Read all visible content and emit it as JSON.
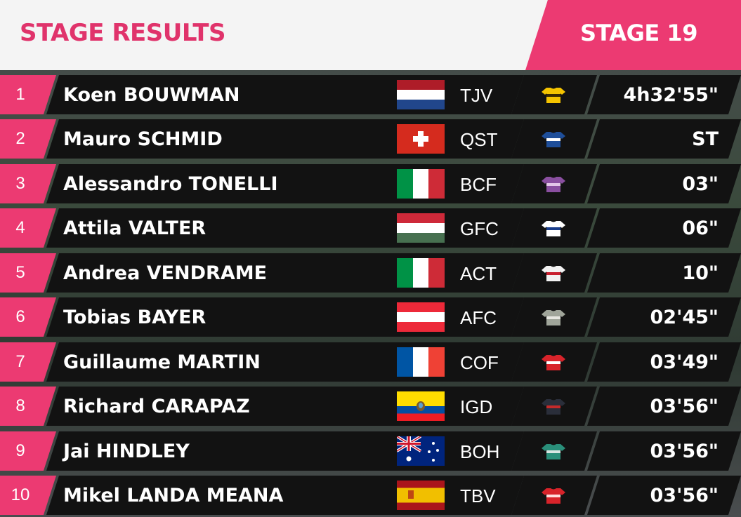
{
  "header": {
    "title": "STAGE RESULTS",
    "stage": "STAGE 19"
  },
  "results": [
    {
      "rank": "1",
      "name": "Koen BOUWMAN",
      "flag": "netherlands",
      "team": "TJV",
      "jersey": "yellow-black-jersey",
      "time": "4h32'55\""
    },
    {
      "rank": "2",
      "name": "Mauro SCHMID",
      "flag": "switzerland",
      "team": "QST",
      "jersey": "blue-jersey",
      "time": "ST"
    },
    {
      "rank": "3",
      "name": "Alessandro TONELLI",
      "flag": "italy",
      "team": "BCF",
      "jersey": "purple-jersey",
      "time": "03\""
    },
    {
      "rank": "4",
      "name": "Attila VALTER",
      "flag": "hungary",
      "team": "GFC",
      "jersey": "white-blue-red-jersey",
      "time": "06\""
    },
    {
      "rank": "5",
      "name": "Andrea VENDRAME",
      "flag": "italy",
      "team": "ACT",
      "jersey": "white-red-jersey",
      "time": "10\""
    },
    {
      "rank": "6",
      "name": "Tobias BAYER",
      "flag": "austria",
      "team": "AFC",
      "jersey": "grey-jersey",
      "time": "02'45\""
    },
    {
      "rank": "7",
      "name": "Guillaume MARTIN",
      "flag": "france",
      "team": "COF",
      "jersey": "red-white-jersey",
      "time": "03'49\""
    },
    {
      "rank": "8",
      "name": "Richard CARAPAZ",
      "flag": "ecuador",
      "team": "IGD",
      "jersey": "dark-red-jersey",
      "time": "03'56\""
    },
    {
      "rank": "9",
      "name": "Jai HINDLEY",
      "flag": "australia",
      "team": "BOH",
      "jersey": "teal-jersey",
      "time": "03'56\""
    },
    {
      "rank": "10",
      "name": "Mikel LANDA MEANA",
      "flag": "spain",
      "team": "TBV",
      "jersey": "red-jersey",
      "time": "03'56\""
    }
  ],
  "colors": {
    "accent": "#ec3a72",
    "title": "#e0336b",
    "row_bg": "#121212"
  }
}
